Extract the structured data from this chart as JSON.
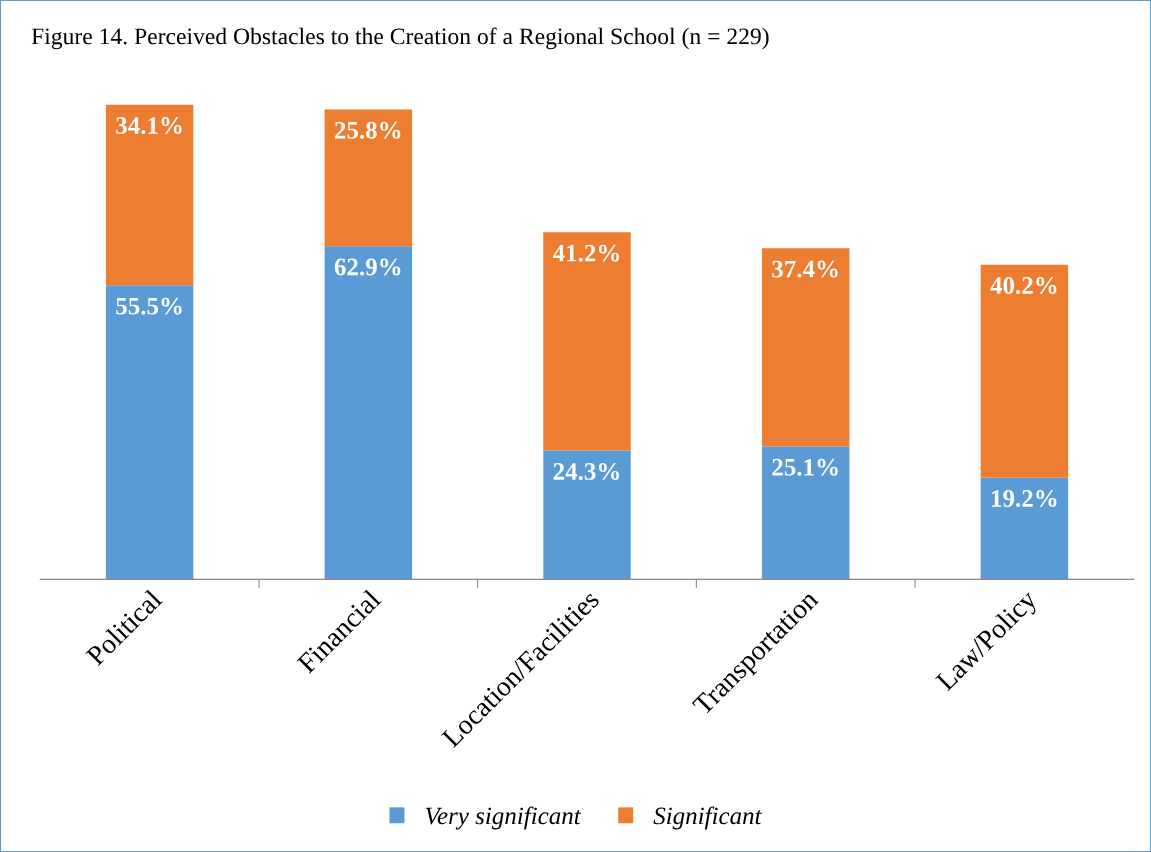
{
  "chart_data": {
    "type": "bar",
    "title": "Figure 14. Perceived Obstacles to the Creation of a Regional School (n = 229)",
    "categories": [
      "Political",
      "Financial",
      "Location/Facilities",
      "Transportation",
      "Law/Policy"
    ],
    "stacked": true,
    "legend": "bottom",
    "grid": false,
    "series": [
      {
        "name": "Very significant",
        "color": "#5b9bd5",
        "values": [
          55.5,
          62.9,
          24.3,
          25.1,
          19.2
        ],
        "value_labels": [
          "55.5%",
          "62.9%",
          "24.3%",
          "25.1%",
          "19.2%"
        ]
      },
      {
        "name": "Significant",
        "color": "#ed7d31",
        "values": [
          34.1,
          25.8,
          41.2,
          37.4,
          40.2
        ],
        "value_labels": [
          "34.1%",
          "25.8%",
          "41.2%",
          "37.4%",
          "40.2%"
        ]
      }
    ]
  }
}
